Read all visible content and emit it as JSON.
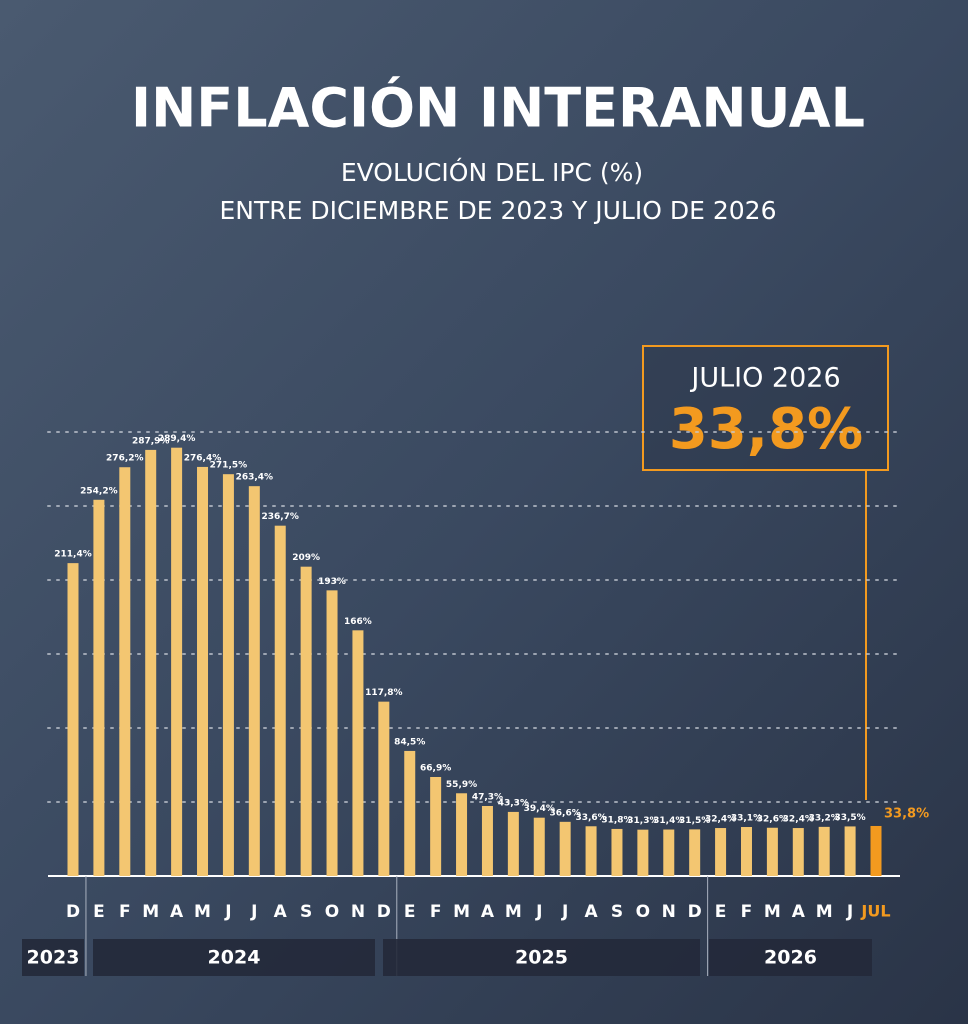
{
  "chart_data": {
    "type": "bar",
    "title": "INFLACIÓN INTERANUAL",
    "subtitle": [
      "EVOLUCIÓN DEL IPC (%)",
      "ENTRE DICIEMBRE DE 2023 Y JULIO DE 2026"
    ],
    "groups": [
      {
        "name": "2023",
        "categories": [
          "D"
        ]
      },
      {
        "name": "2024",
        "categories": [
          "E",
          "F",
          "M",
          "A",
          "M",
          "J",
          "J",
          "A",
          "S",
          "O",
          "N",
          "D"
        ]
      },
      {
        "name": "2025",
        "categories": [
          "E",
          "F",
          "M",
          "A",
          "M",
          "J",
          "J",
          "A",
          "S",
          "O",
          "N",
          "D"
        ]
      },
      {
        "name": "2026",
        "categories": [
          "E",
          "F",
          "M",
          "A",
          "M",
          "J",
          "JUL"
        ]
      }
    ],
    "values": [
      211.4,
      254.2,
      276.2,
      287.9,
      289.4,
      276.4,
      271.5,
      263.4,
      236.7,
      209,
      193,
      166,
      117.8,
      84.5,
      66.9,
      55.9,
      47.3,
      43.3,
      39.4,
      36.6,
      33.6,
      31.8,
      31.3,
      31.4,
      31.5,
      32.4,
      33.1,
      32.6,
      32.4,
      33.2,
      33.5,
      33.8
    ],
    "value_labels": [
      "211,4%",
      "254,2%",
      "276,2%",
      "287,9%",
      "289,4%",
      "276,4%",
      "271,5%",
      "263,4%",
      "236,7%",
      "209%",
      "193%",
      "166%",
      "117,8%",
      "84,5%",
      "66,9%",
      "55,9%",
      "47,3%",
      "43,3%",
      "39,4%",
      "36,6%",
      "33,6%",
      "31,8%",
      "31,3%",
      "31,4%",
      "31,5%",
      "32,4%",
      "33,1%",
      "32,6%",
      "32,4%",
      "33,2%",
      "33,5%",
      "33,8%"
    ],
    "color": "#f3c671",
    "highlight_color": "#f39a1f",
    "ylim": [
      0,
      300
    ],
    "yticks": [
      50,
      100,
      150,
      200,
      250,
      300
    ],
    "grid": true,
    "annotation": {
      "title": "JULIO 2026",
      "text": "33,8%"
    }
  }
}
